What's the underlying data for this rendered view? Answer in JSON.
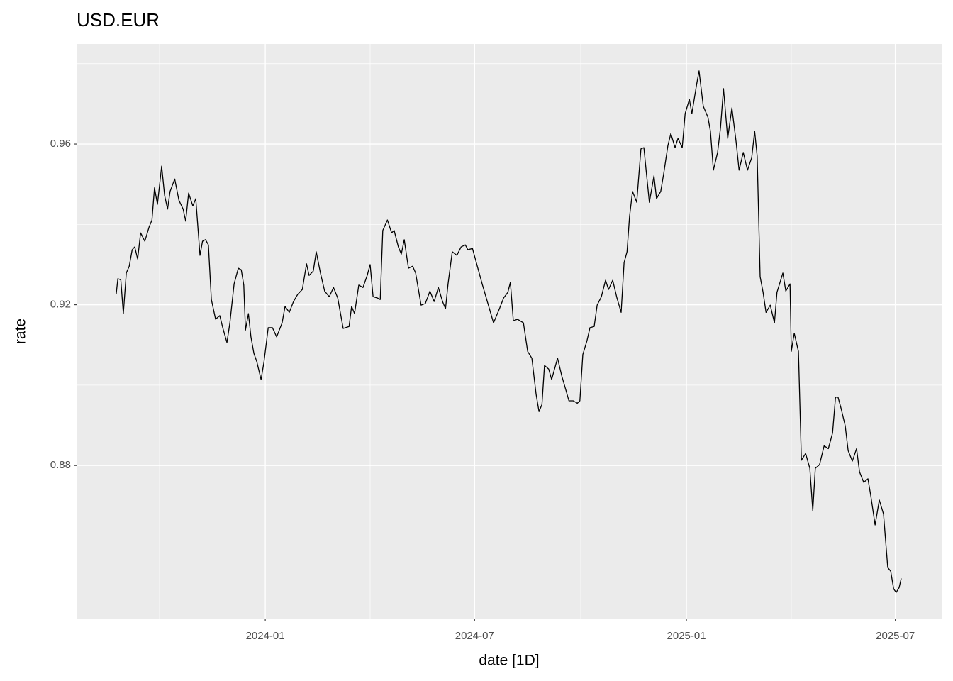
{
  "chart_data": {
    "type": "line",
    "title": "USD.EUR",
    "x_label": "date [1D]",
    "y_label": "rate",
    "color": "#000000",
    "grid": true,
    "xlim": [
      2023.552,
      2025.606
    ],
    "ylim": [
      0.8419,
      0.9849
    ],
    "xticks": [
      {
        "value": 2024.0,
        "label": "2024-01"
      },
      {
        "value": 2024.497,
        "label": "2024-07"
      },
      {
        "value": 2025.0,
        "label": "2025-01"
      },
      {
        "value": 2025.496,
        "label": "2025-07"
      }
    ],
    "minor_xticks": [
      2023.749,
      2024.249,
      2024.749,
      2025.249
    ],
    "yticks": [
      0.88,
      0.92,
      0.96
    ],
    "minor_yticks": [
      0.86,
      0.9,
      0.94,
      0.98
    ],
    "x": [
      2023.646,
      2023.65,
      2023.657,
      2023.663,
      2023.67,
      2023.677,
      2023.684,
      2023.69,
      2023.697,
      2023.704,
      2023.714,
      2023.724,
      2023.731,
      2023.737,
      2023.744,
      2023.754,
      2023.761,
      2023.768,
      2023.774,
      2023.785,
      2023.795,
      2023.805,
      2023.811,
      2023.818,
      2023.828,
      2023.835,
      2023.845,
      2023.851,
      2023.858,
      2023.865,
      2023.872,
      2023.882,
      2023.892,
      2023.899,
      2023.909,
      2023.916,
      2023.926,
      2023.936,
      2023.943,
      2023.949,
      2023.953,
      2023.96,
      2023.966,
      2023.973,
      2023.98,
      2023.99,
      2023.997,
      2024.007,
      2024.017,
      2024.027,
      2024.04,
      2024.047,
      2024.057,
      2024.067,
      2024.077,
      2024.088,
      2024.098,
      2024.104,
      2024.114,
      2024.121,
      2024.131,
      2024.141,
      2024.152,
      2024.162,
      2024.172,
      2024.185,
      2024.199,
      2024.205,
      2024.212,
      2024.222,
      2024.232,
      2024.242,
      2024.249,
      2024.256,
      2024.266,
      2024.273,
      2024.279,
      2024.29,
      2024.3,
      2024.306,
      2024.316,
      2024.323,
      2024.33,
      2024.34,
      2024.35,
      2024.357,
      2024.37,
      2024.38,
      2024.391,
      2024.401,
      2024.411,
      2024.421,
      2024.428,
      2024.434,
      2024.444,
      2024.455,
      2024.465,
      2024.475,
      2024.481,
      2024.492,
      2024.515,
      2024.542,
      2024.556,
      2024.566,
      2024.576,
      2024.582,
      2024.589,
      2024.599,
      2024.613,
      2024.623,
      2024.633,
      2024.643,
      2024.65,
      2024.657,
      2024.663,
      2024.673,
      2024.68,
      2024.694,
      2024.704,
      2024.714,
      2024.721,
      2024.731,
      2024.741,
      2024.747,
      2024.754,
      2024.764,
      2024.771,
      2024.781,
      2024.788,
      2024.798,
      2024.808,
      2024.815,
      2024.825,
      2024.835,
      2024.845,
      2024.852,
      2024.859,
      2024.865,
      2024.872,
      2024.882,
      2024.892,
      2024.899,
      2024.906,
      2024.912,
      2024.923,
      2024.929,
      2024.939,
      2024.946,
      2024.956,
      2024.963,
      2024.973,
      2024.98,
      2024.99,
      2024.997,
      2025.007,
      2025.013,
      2025.024,
      2025.03,
      2025.04,
      2025.051,
      2025.057,
      2025.064,
      2025.074,
      2025.081,
      2025.088,
      2025.098,
      2025.108,
      2025.118,
      2025.125,
      2025.135,
      2025.145,
      2025.155,
      2025.162,
      2025.168,
      2025.175,
      2025.182,
      2025.189,
      2025.199,
      2025.209,
      2025.215,
      2025.229,
      2025.236,
      2025.246,
      2025.249,
      2025.256,
      2025.266,
      2025.273,
      2025.283,
      2025.293,
      2025.3,
      2025.306,
      2025.316,
      2025.327,
      2025.337,
      2025.347,
      2025.354,
      2025.36,
      2025.367,
      2025.377,
      2025.384,
      2025.394,
      2025.404,
      2025.411,
      2025.421,
      2025.431,
      2025.438,
      2025.448,
      2025.458,
      2025.468,
      2025.478,
      2025.485,
      2025.492,
      2025.498,
      2025.505,
      2025.51
    ],
    "values": [
      0.9226,
      0.9265,
      0.9262,
      0.9178,
      0.9279,
      0.9296,
      0.9337,
      0.9344,
      0.9314,
      0.9379,
      0.9358,
      0.9393,
      0.9411,
      0.9491,
      0.945,
      0.9545,
      0.9472,
      0.9438,
      0.9482,
      0.9513,
      0.946,
      0.9438,
      0.9408,
      0.9478,
      0.9446,
      0.9464,
      0.9323,
      0.9358,
      0.9362,
      0.9349,
      0.9213,
      0.9164,
      0.9173,
      0.9143,
      0.9106,
      0.9155,
      0.9252,
      0.9291,
      0.9287,
      0.9249,
      0.9137,
      0.9178,
      0.912,
      0.9079,
      0.9058,
      0.9014,
      0.9058,
      0.9143,
      0.9143,
      0.912,
      0.9155,
      0.9196,
      0.9181,
      0.9208,
      0.9226,
      0.9238,
      0.9302,
      0.9273,
      0.9284,
      0.9332,
      0.9279,
      0.9234,
      0.922,
      0.9243,
      0.9217,
      0.9141,
      0.9146,
      0.9196,
      0.9178,
      0.9249,
      0.9243,
      0.9273,
      0.93,
      0.922,
      0.9217,
      0.9213,
      0.9385,
      0.9411,
      0.9379,
      0.9385,
      0.9344,
      0.9326,
      0.9362,
      0.9291,
      0.9296,
      0.9279,
      0.9199,
      0.9203,
      0.9234,
      0.9208,
      0.9243,
      0.9208,
      0.919,
      0.9252,
      0.9332,
      0.9323,
      0.9344,
      0.9349,
      0.9337,
      0.934,
      0.9252,
      0.9155,
      0.919,
      0.9217,
      0.9231,
      0.9256,
      0.916,
      0.9164,
      0.9155,
      0.9084,
      0.9067,
      0.8978,
      0.8934,
      0.8952,
      0.9049,
      0.904,
      0.9014,
      0.9067,
      0.9023,
      0.8987,
      0.8961,
      0.8961,
      0.8955,
      0.8961,
      0.9076,
      0.9111,
      0.9143,
      0.9146,
      0.9199,
      0.922,
      0.9261,
      0.9238,
      0.9261,
      0.9217,
      0.9181,
      0.9305,
      0.9332,
      0.942,
      0.9482,
      0.9455,
      0.9588,
      0.9591,
      0.9517,
      0.9455,
      0.9521,
      0.9464,
      0.9482,
      0.9526,
      0.9596,
      0.9626,
      0.9591,
      0.9614,
      0.9591,
      0.9676,
      0.9711,
      0.9676,
      0.9747,
      0.9782,
      0.9694,
      0.9667,
      0.9632,
      0.9535,
      0.9579,
      0.9641,
      0.9738,
      0.9614,
      0.969,
      0.9605,
      0.9535,
      0.9579,
      0.9535,
      0.9566,
      0.9632,
      0.957,
      0.927,
      0.9231,
      0.9181,
      0.9199,
      0.9155,
      0.9231,
      0.9279,
      0.9234,
      0.9252,
      0.9084,
      0.9129,
      0.9084,
      0.8813,
      0.883,
      0.8793,
      0.8687,
      0.8793,
      0.8802,
      0.8849,
      0.8842,
      0.8881,
      0.897,
      0.897,
      0.8943,
      0.8899,
      0.8837,
      0.8811,
      0.8842,
      0.8784,
      0.8758,
      0.8767,
      0.8723,
      0.8652,
      0.8714,
      0.8679,
      0.8546,
      0.8537,
      0.8493,
      0.8484,
      0.8496,
      0.8519
    ]
  }
}
